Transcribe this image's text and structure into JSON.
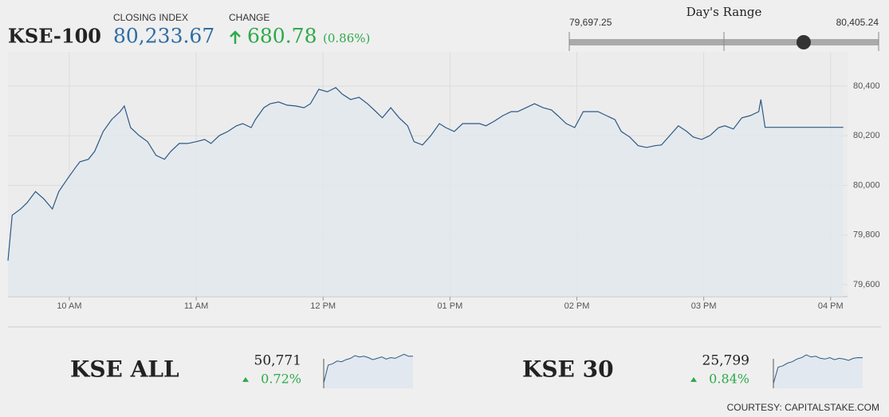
{
  "header": {
    "symbol": "KSE-100",
    "closing_index_label": "CLOSING INDEX",
    "closing_index": {
      "value": 80233.67,
      "label": "80,233.67"
    },
    "change_label": "CHANGE",
    "change": "680.78",
    "change_pct": "(0.86%)"
  },
  "day_range": {
    "title": "Day's Range",
    "low": {
      "value": 79697.25,
      "label": "79,697.25"
    },
    "high": {
      "value": 80405.24,
      "label": "80,405.24"
    }
  },
  "chart_data": {
    "type": "line",
    "x": [
      571,
      573,
      577,
      580,
      584,
      588,
      592,
      595,
      599,
      603,
      605,
      609,
      612,
      616,
      620,
      624,
      626,
      629,
      633,
      637,
      641,
      645,
      648,
      652,
      656,
      660,
      664,
      667,
      671,
      675,
      679,
      682,
      686,
      688,
      692,
      695,
      699,
      703,
      707,
      711,
      714,
      718,
      722,
      726,
      729,
      733,
      737,
      741,
      745,
      748,
      752,
      756,
      760,
      763,
      767,
      771,
      775,
      778,
      782,
      786,
      790,
      794,
      797,
      801,
      805,
      809,
      812,
      816,
      820,
      824,
      828,
      831,
      835,
      839,
      843,
      846,
      850,
      854,
      858,
      861,
      865,
      869,
      873,
      877,
      880,
      884,
      888,
      892,
      895,
      899,
      903,
      907,
      910,
      914,
      918,
      922,
      926,
      927,
      929,
      966
    ],
    "series": [
      {
        "color": "#2c5985",
        "fill": "#e2e8ef",
        "values": [
          79697,
          79880,
          79905,
          79930,
          79975,
          79945,
          79905,
          79975,
          80025,
          80073,
          80095,
          80105,
          80137,
          80217,
          80265,
          80297,
          80320,
          80233,
          80201,
          80176,
          80121,
          80105,
          80137,
          80169,
          80169,
          80176,
          80185,
          80169,
          80201,
          80217,
          80240,
          80249,
          80233,
          80265,
          80313,
          80329,
          80336,
          80323,
          80320,
          80313,
          80329,
          80387,
          80377,
          80394,
          80368,
          80346,
          80355,
          80329,
          80297,
          80272,
          80313,
          80272,
          80240,
          80176,
          80163,
          80201,
          80249,
          80233,
          80217,
          80249,
          80249,
          80249,
          80240,
          80259,
          80281,
          80297,
          80297,
          80313,
          80329,
          80313,
          80304,
          80281,
          80249,
          80233,
          80297,
          80297,
          80297,
          80281,
          80265,
          80217,
          80195,
          80160,
          80153,
          80160,
          80163,
          80201,
          80240,
          80217,
          80195,
          80185,
          80201,
          80233,
          80240,
          80227,
          80272,
          80281,
          80297,
          80346,
          80234,
          80234
        ]
      }
    ],
    "xlim": [
      571,
      968
    ],
    "xticks": [
      {
        "value": 600,
        "label": "10 AM"
      },
      {
        "value": 660,
        "label": "11 AM"
      },
      {
        "value": 720,
        "label": "12 PM"
      },
      {
        "value": 780,
        "label": "01 PM"
      },
      {
        "value": 840,
        "label": "02 PM"
      },
      {
        "value": 900,
        "label": "03 PM"
      },
      {
        "value": 960,
        "label": "04 PM"
      }
    ],
    "ylim": [
      79552,
      80538
    ],
    "yticks": [
      {
        "value": 79600,
        "label": "79,600"
      },
      {
        "value": 79800,
        "label": "79,800"
      },
      {
        "value": 80000,
        "label": "80,000"
      },
      {
        "value": 80200,
        "label": "80,200"
      },
      {
        "value": 80400,
        "label": "80,400"
      }
    ],
    "grid": true
  },
  "tickers": [
    {
      "name": "KSE ALL",
      "value": "50,771",
      "change": "0.72%",
      "sparkline": {
        "ylim": [
          50300,
          50850
        ],
        "values": [
          50380,
          50640,
          50660,
          50700,
          50690,
          50720,
          50740,
          50780,
          50760,
          50770,
          50750,
          50720,
          50740,
          50760,
          50730,
          50750,
          50740,
          50770,
          50800,
          50771,
          50771
        ]
      }
    },
    {
      "name": "KSE 30",
      "value": "25,799",
      "change": "0.84%",
      "sparkline": {
        "ylim": [
          25350,
          25900
        ],
        "values": [
          25420,
          25660,
          25680,
          25720,
          25740,
          25780,
          25800,
          25840,
          25810,
          25820,
          25790,
          25780,
          25800,
          25770,
          25790,
          25780,
          25760,
          25790,
          25800,
          25799
        ]
      }
    }
  ],
  "footer": "COURTESY: CAPITALSTAKE.COM"
}
